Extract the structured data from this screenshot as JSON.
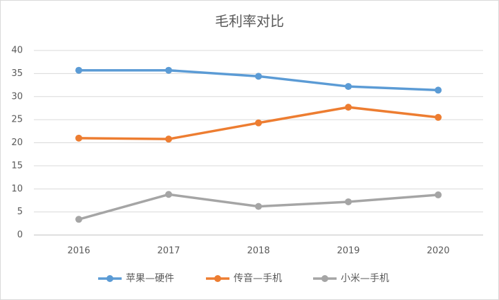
{
  "chart_data": {
    "type": "line",
    "title": "毛利率对比",
    "categories": [
      "2016",
      "2017",
      "2018",
      "2019",
      "2020"
    ],
    "series": [
      {
        "name": "苹果—硬件",
        "color": "#5b9bd5",
        "values": [
          35.7,
          35.7,
          34.4,
          32.2,
          31.4
        ]
      },
      {
        "name": "传音—手机",
        "color": "#ed7d31",
        "values": [
          21.0,
          20.8,
          24.3,
          27.7,
          25.5
        ]
      },
      {
        "name": "小米—手机",
        "color": "#a5a5a5",
        "values": [
          3.4,
          8.8,
          6.2,
          7.2,
          8.7
        ]
      }
    ],
    "ylim": [
      0,
      40
    ],
    "yticks": [
      0,
      5,
      10,
      15,
      20,
      25,
      30,
      35,
      40
    ],
    "grid": true,
    "legend": "bottom"
  }
}
